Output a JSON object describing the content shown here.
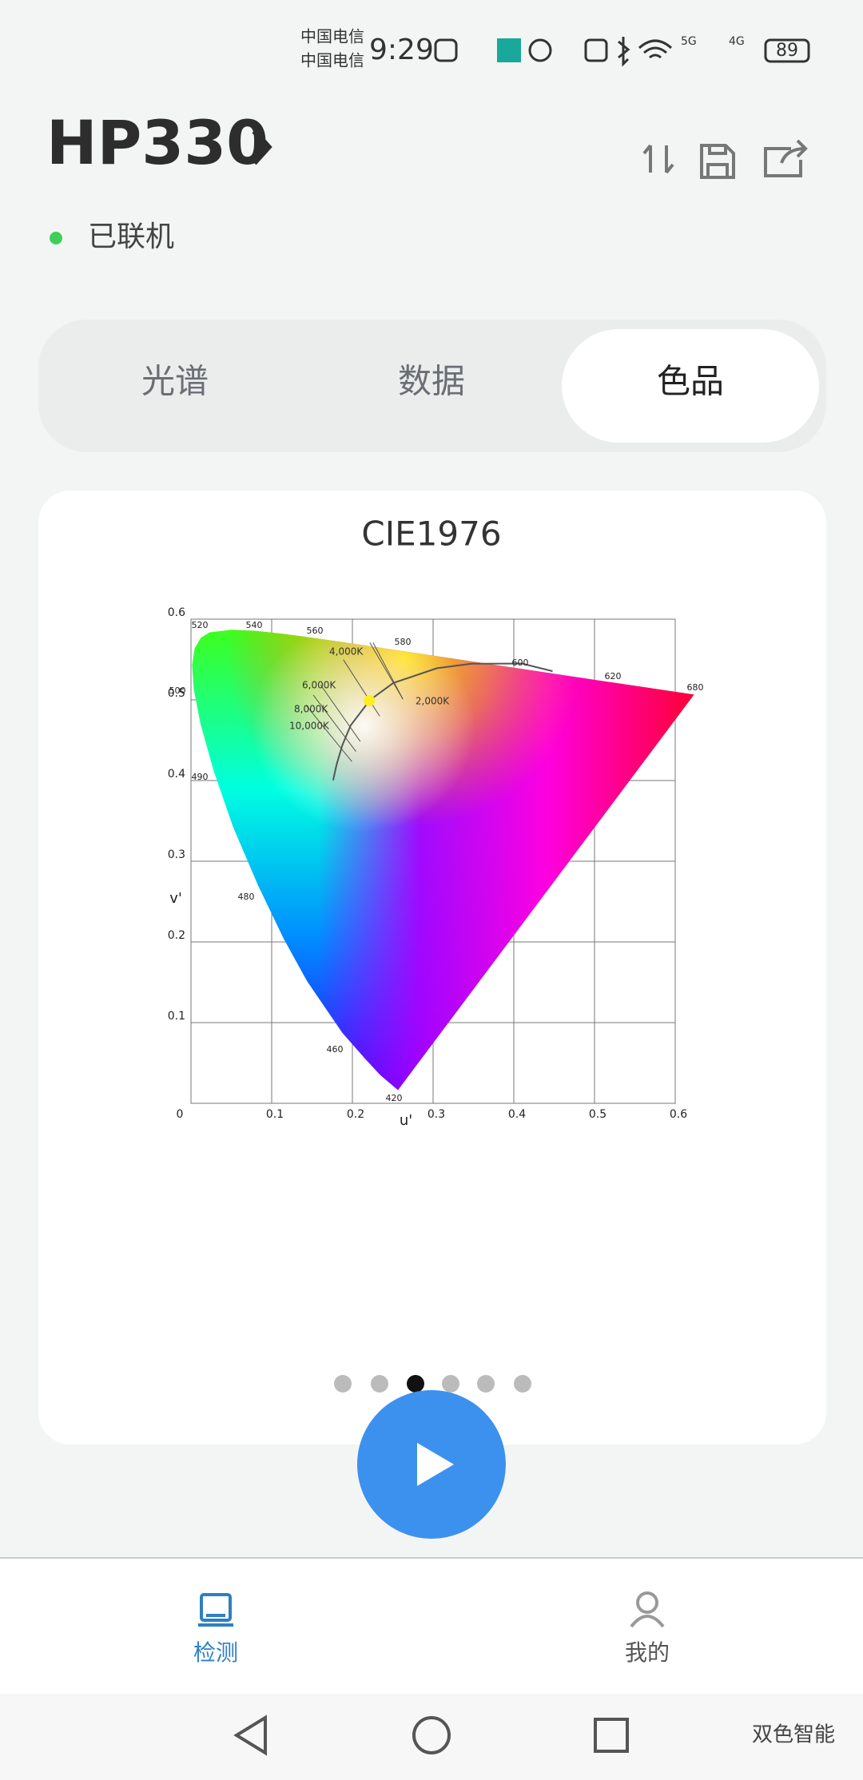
{
  "status_bar": {
    "carrier_1": "中国电信",
    "carrier_2": "中国电信",
    "time": "9:29",
    "network_1": "5G",
    "network_2": "4G",
    "battery": "89"
  },
  "header": {
    "device": "HP330",
    "status": "已联机"
  },
  "tabs": {
    "items": [
      "光谱",
      "数据",
      "色品"
    ],
    "selected": 2
  },
  "chart_data": {
    "type": "cie1976",
    "title": "CIE1976",
    "x_label": "u'",
    "y_label": "v'",
    "xlim": [
      0,
      0.6
    ],
    "ylim": [
      0,
      0.6
    ],
    "xticks": [
      0,
      0.1,
      0.2,
      0.3,
      0.4,
      0.5,
      0.6
    ],
    "yticks": [
      0.1,
      0.2,
      0.3,
      0.4,
      0.5,
      0.6
    ],
    "grid": true,
    "wavelength_labels": [
      520,
      540,
      560,
      580,
      600,
      620,
      680,
      500,
      490,
      480,
      460,
      420
    ],
    "cct_labels": [
      "2,000K",
      "4,000K",
      "6,000K",
      "8,000K",
      "10,000K"
    ],
    "point": {
      "u": 0.221,
      "v": 0.499,
      "color": "#ffee22"
    }
  },
  "nav": {
    "items": [
      "检测",
      "我的"
    ],
    "selected": 0
  },
  "watermark": "双色智能"
}
